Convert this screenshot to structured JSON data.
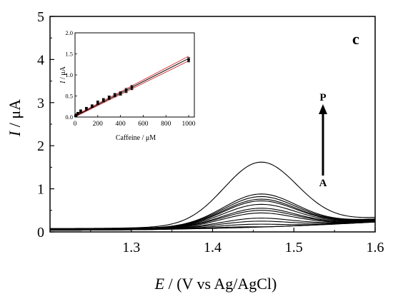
{
  "chart_data": [
    {
      "type": "line",
      "panel_label": "c",
      "xlabel_italic": "E",
      "xlabel_rest": " / (V vs Ag/AgCl)",
      "ylabel_italic": "I",
      "ylabel_rest": " / μA",
      "xlim": [
        1.2,
        1.6
      ],
      "ylim": [
        0,
        5
      ],
      "x_ticks": [
        "1.3",
        "1.4",
        "1.5",
        "1.6"
      ],
      "y_ticks": [
        "0",
        "1",
        "2",
        "3",
        "4",
        "5"
      ],
      "peak_potential": 1.46,
      "curves": [
        {
          "peak": 1.62,
          "base_start": 0.08,
          "base_end": 0.33
        },
        {
          "peak": 0.88,
          "base_start": 0.07,
          "base_end": 0.3
        },
        {
          "peak": 0.82,
          "base_start": 0.07,
          "base_end": 0.29
        },
        {
          "peak": 0.76,
          "base_start": 0.07,
          "base_end": 0.28
        },
        {
          "peak": 0.72,
          "base_start": 0.06,
          "base_end": 0.28
        },
        {
          "peak": 0.64,
          "base_start": 0.06,
          "base_end": 0.27
        },
        {
          "peak": 0.55,
          "base_start": 0.06,
          "base_end": 0.26
        },
        {
          "peak": 0.5,
          "base_start": 0.06,
          "base_end": 0.26
        },
        {
          "peak": 0.44,
          "base_start": 0.05,
          "base_end": 0.25
        },
        {
          "peak": 0.32,
          "base_start": 0.05,
          "base_end": 0.25
        },
        {
          "peak": 0.25,
          "base_start": 0.05,
          "base_end": 0.24
        },
        {
          "peak": 0.18,
          "base_start": 0.04,
          "base_end": 0.24
        },
        {
          "peak": 0.12,
          "base_start": 0.04,
          "base_end": 0.23
        },
        {
          "peak": 0.08,
          "base_start": 0.04,
          "base_end": 0.23
        }
      ],
      "annotation_top": "P",
      "annotation_bottom": "A"
    },
    {
      "type": "scatter",
      "inset": true,
      "xlabel": "Caffeine / μM",
      "ylabel_italic": "I",
      "ylabel_rest": " / μA",
      "xlim": [
        0,
        1050
      ],
      "ylim": [
        0,
        2.0
      ],
      "x_ticks": [
        "0",
        "200",
        "400",
        "600",
        "800",
        "1000"
      ],
      "y_ticks": [
        "0.0",
        "0.5",
        "1.0",
        "1.5",
        "2.0"
      ],
      "x": [
        5,
        10,
        25,
        50,
        100,
        150,
        200,
        250,
        300,
        350,
        400,
        450,
        500,
        1000
      ],
      "y": [
        0.03,
        0.05,
        0.09,
        0.14,
        0.2,
        0.26,
        0.34,
        0.4,
        0.46,
        0.52,
        0.56,
        0.63,
        0.7,
        1.36
      ],
      "error": [
        0.02,
        0.02,
        0.02,
        0.03,
        0.03,
        0.03,
        0.04,
        0.04,
        0.04,
        0.04,
        0.04,
        0.05,
        0.05,
        0.05
      ],
      "fit": {
        "slope": 0.00137,
        "intercept": 0.02,
        "color": "#000000"
      },
      "confidence_band_color": "#d62728"
    }
  ]
}
